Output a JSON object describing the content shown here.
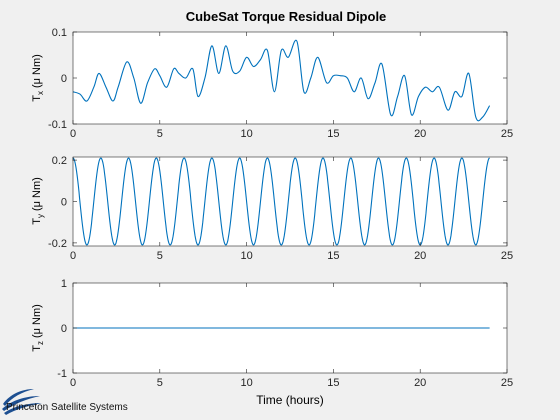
{
  "figure": {
    "background": "#f0f0f0",
    "plot_background": "#ffffff",
    "line_color": "#0072bd",
    "title": "CubeSat Torque Residual Dipole",
    "xlabel": "Time (hours)",
    "logo_text": "Princeton Satellite Systems"
  },
  "chart_data": [
    {
      "type": "line",
      "ylabel_main": "T",
      "ylabel_sub": "x",
      "ylabel_unit": "(μ Nm)",
      "xlim": [
        0,
        25
      ],
      "ylim": [
        -0.1,
        0.1
      ],
      "xticks": [
        0,
        5,
        10,
        15,
        20,
        25
      ],
      "yticks": [
        -0.1,
        0,
        0.1
      ],
      "ytick_labels": [
        "-0.1",
        "0",
        "0.1"
      ],
      "grid": false,
      "series": [
        {
          "x": [
            0,
            0.4,
            0.8,
            1.2,
            1.5,
            1.9,
            2.3,
            2.6,
            3.1,
            3.5,
            3.9,
            4.3,
            4.7,
            5.0,
            5.4,
            5.8,
            6.1,
            6.5,
            6.9,
            7.2,
            7.6,
            8.0,
            8.4,
            8.8,
            9.2,
            9.6,
            10.0,
            10.4,
            10.8,
            11.2,
            11.6,
            12.0,
            12.4,
            12.9,
            13.3,
            13.7,
            14.1,
            14.6,
            15.0,
            15.4,
            15.8,
            16.2,
            16.6,
            17.0,
            17.4,
            17.8,
            18.3,
            18.7,
            19.1,
            19.5,
            19.9,
            20.3,
            20.7,
            21.1,
            21.6,
            22.0,
            22.4,
            22.8,
            23.2,
            23.6,
            24.0
          ],
          "y": [
            -0.03,
            -0.035,
            -0.05,
            -0.02,
            0.01,
            -0.02,
            -0.05,
            -0.02,
            0.035,
            0.0,
            -0.055,
            -0.01,
            0.02,
            0.005,
            -0.02,
            0.02,
            0.01,
            0.0,
            0.02,
            -0.04,
            0.0,
            0.07,
            0.01,
            0.07,
            0.015,
            0.015,
            0.045,
            0.025,
            0.04,
            0.06,
            -0.03,
            0.06,
            0.045,
            0.08,
            -0.03,
            0.0,
            0.045,
            -0.01,
            0.005,
            0.005,
            0.0,
            -0.03,
            0.0,
            -0.045,
            -0.01,
            0.03,
            -0.08,
            -0.04,
            0.005,
            -0.08,
            -0.04,
            -0.02,
            -0.03,
            -0.02,
            -0.07,
            -0.03,
            -0.04,
            0.01,
            -0.085,
            -0.085,
            -0.06
          ]
        }
      ]
    },
    {
      "type": "line",
      "ylabel_main": "T",
      "ylabel_sub": "y",
      "ylabel_unit": "(μ Nm)",
      "xlim": [
        0,
        25
      ],
      "ylim": [
        -0.215,
        0.215
      ],
      "xticks": [
        0,
        5,
        10,
        15,
        20,
        25
      ],
      "yticks": [
        -0.2,
        0,
        0.2
      ],
      "ytick_labels": [
        "-0.2",
        "0",
        "0.2"
      ],
      "grid": false,
      "series": [
        {
          "function": "0.21*cos(2*pi*t/1.6)",
          "amplitude": 0.21,
          "period_hours": 1.6,
          "t_start": 0,
          "t_end": 24
        }
      ]
    },
    {
      "type": "line",
      "ylabel_main": "T",
      "ylabel_sub": "z",
      "ylabel_unit": "(μ Nm)",
      "xlim": [
        0,
        25
      ],
      "ylim": [
        -1,
        1
      ],
      "xticks": [
        0,
        5,
        10,
        15,
        20,
        25
      ],
      "yticks": [
        -1,
        0,
        1
      ],
      "ytick_labels": [
        "-1",
        "0",
        "1"
      ],
      "grid": false,
      "series": [
        {
          "x": [
            0,
            24
          ],
          "y": [
            0,
            0
          ]
        }
      ]
    }
  ]
}
